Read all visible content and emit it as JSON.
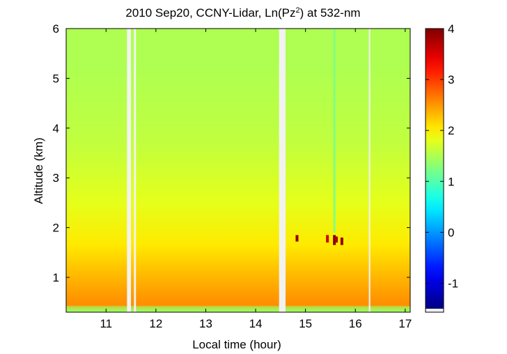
{
  "chart_data": {
    "type": "heatmap",
    "title_main": "2010 Sep20, CCNY-Lidar, Ln(Pz",
    "title_sup": "2",
    "title_tail": ") at 532-nm",
    "xlabel": "Local time (hour)",
    "ylabel": "Altitude (km)",
    "xlim": [
      10.2,
      17.1
    ],
    "ylim": [
      0.3,
      6.0
    ],
    "x_ticks": [
      11,
      12,
      13,
      14,
      15,
      16,
      17
    ],
    "y_ticks": [
      1,
      2,
      3,
      4,
      5,
      6
    ],
    "colorbar": {
      "colormap": "jet",
      "clim": [
        -1.5,
        4.0
      ],
      "ticks": [
        -1,
        0,
        1,
        2,
        3,
        4
      ]
    },
    "data_gaps_hours": [
      [
        11.42,
        11.5
      ],
      [
        11.56,
        11.6
      ],
      [
        14.47,
        14.6
      ],
      [
        16.27,
        16.3
      ]
    ],
    "value_profile": {
      "description_free": true,
      "layers": [
        {
          "altitude_km": [
            0.3,
            0.6
          ],
          "value": 2.55
        },
        {
          "altitude_km": [
            0.6,
            1.3
          ],
          "value": 2.35
        },
        {
          "altitude_km": [
            1.3,
            2.0
          ],
          "value": 2.05
        },
        {
          "altitude_km": [
            2.0,
            3.0
          ],
          "value": 1.8
        },
        {
          "altitude_km": [
            3.0,
            4.5
          ],
          "value": 1.6
        },
        {
          "altitude_km": [
            4.5,
            6.0
          ],
          "value": 1.5
        }
      ],
      "bottom_value": 1.4,
      "aerosol_spikes": [
        {
          "time": 14.83,
          "altitude_km": [
            1.72,
            1.85
          ],
          "value": 3.9
        },
        {
          "time": 15.44,
          "altitude_km": [
            1.7,
            1.85
          ],
          "value": 3.6
        },
        {
          "time": 15.58,
          "altitude_km": [
            1.65,
            1.85
          ],
          "value": 4.0
        },
        {
          "time": 15.62,
          "altitude_km": [
            1.7,
            1.82
          ],
          "value": 3.8
        },
        {
          "time": 15.73,
          "altitude_km": [
            1.65,
            1.8
          ],
          "value": 3.9
        }
      ],
      "thin_streak": {
        "time": 15.58,
        "altitude_km": [
          1.9,
          6.0
        ],
        "value": 1.25
      }
    }
  }
}
